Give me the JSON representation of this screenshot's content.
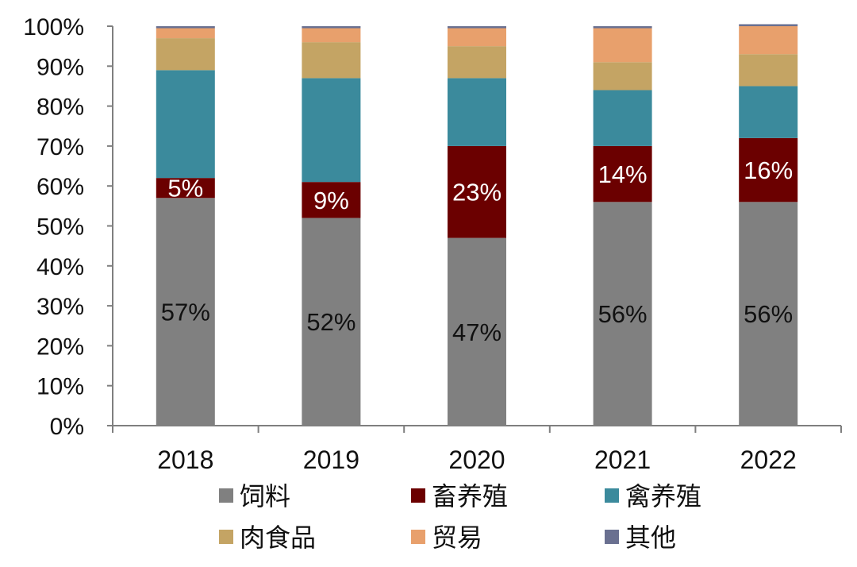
{
  "chart_data": {
    "type": "bar",
    "stacked": true,
    "percent_stacked": true,
    "categories": [
      "2018",
      "2019",
      "2020",
      "2021",
      "2022"
    ],
    "ylim": [
      0,
      100
    ],
    "yticks": [
      "0%",
      "10%",
      "20%",
      "30%",
      "40%",
      "50%",
      "60%",
      "70%",
      "80%",
      "90%",
      "100%"
    ],
    "series": [
      {
        "name": "饲料",
        "color": "#808080",
        "values": [
          57,
          52,
          47,
          56,
          56
        ],
        "labels": [
          "57%",
          "52%",
          "47%",
          "56%",
          "56%"
        ],
        "label_color": "#111111"
      },
      {
        "name": "畜养殖",
        "color": "#6b0000",
        "values": [
          5,
          9,
          23,
          14,
          16
        ],
        "labels": [
          "5%",
          "9%",
          "23%",
          "14%",
          "16%"
        ],
        "label_color": "#ffffff"
      },
      {
        "name": "禽养殖",
        "color": "#3b8a9c",
        "values": [
          27,
          26,
          17,
          14,
          13
        ]
      },
      {
        "name": "肉食品",
        "color": "#c4a464",
        "values": [
          8,
          9,
          8,
          7,
          8
        ]
      },
      {
        "name": "贸易",
        "color": "#e8a06c",
        "values": [
          2.5,
          3.5,
          4.5,
          8.5,
          7
        ]
      },
      {
        "name": "其他",
        "color": "#6a7090",
        "values": [
          0.5,
          0.5,
          0.5,
          0.5,
          0.5
        ]
      }
    ],
    "legend_position": "bottom",
    "grid": false
  }
}
